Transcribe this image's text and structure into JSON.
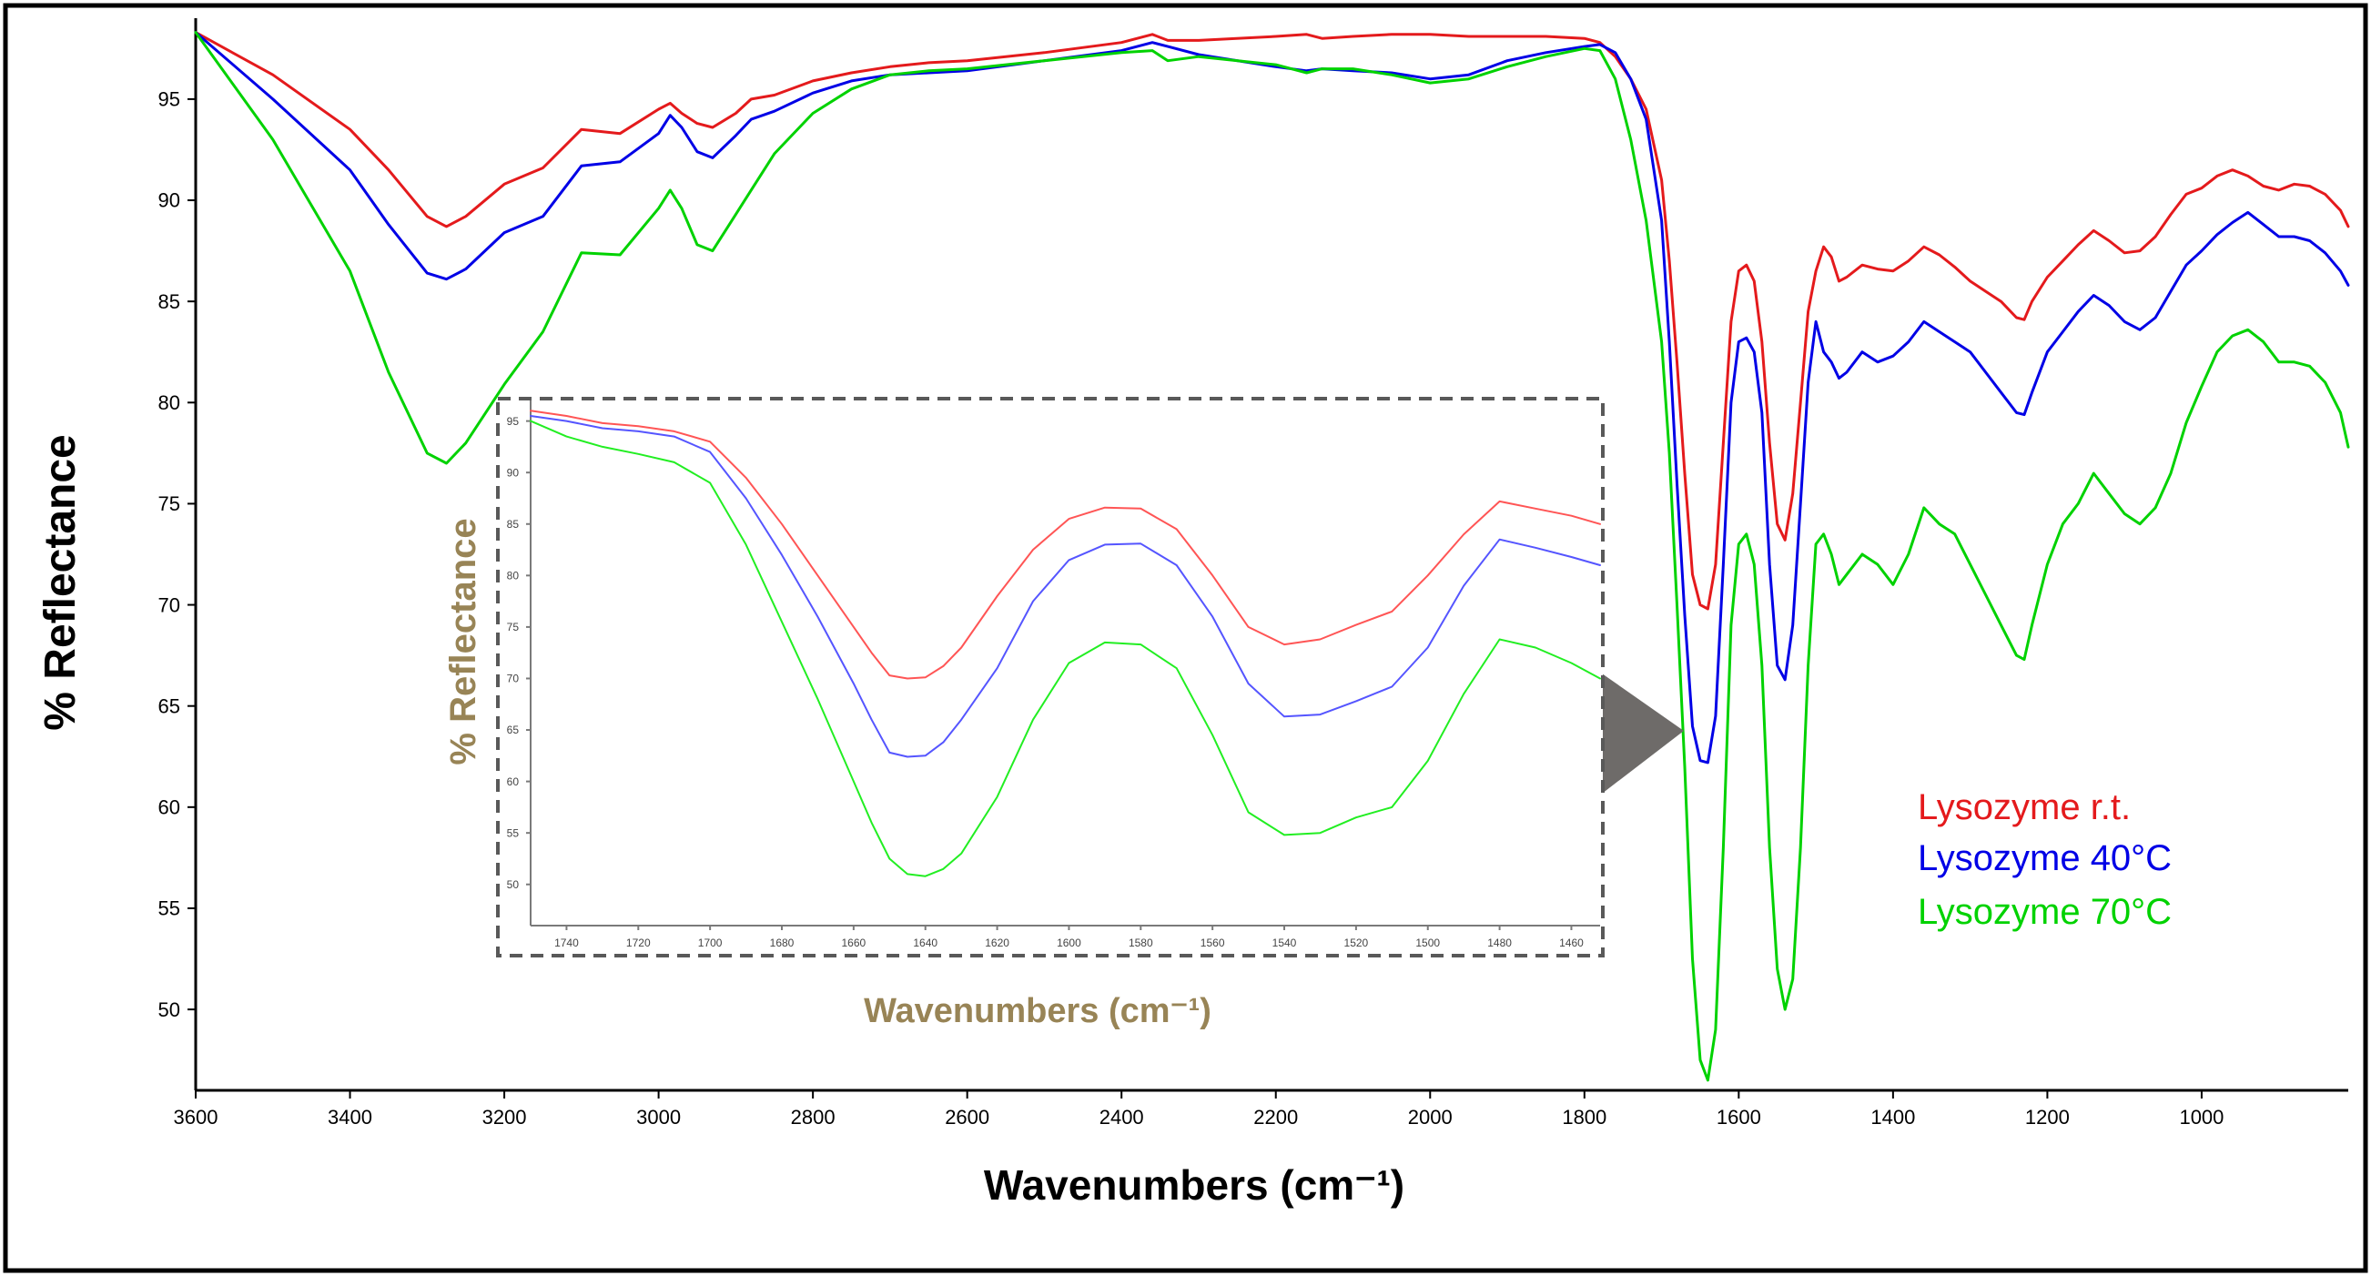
{
  "chart_data": [
    {
      "type": "line",
      "xlabel": "Wavenumbers (cm⁻¹)",
      "ylabel": "% Reflectance",
      "xlim": [
        3600,
        810
      ],
      "ylim": [
        46,
        99
      ],
      "xticks": [
        3600,
        3400,
        3200,
        3000,
        2800,
        2600,
        2400,
        2200,
        2000,
        1800,
        1600,
        1400,
        1200,
        1000
      ],
      "yticks": [
        50,
        55,
        60,
        65,
        70,
        75,
        80,
        85,
        90,
        95
      ],
      "legend_position": "lower-right",
      "series": [
        {
          "name": "Lysozyme r.t.",
          "color": "#e41a1c",
          "x": [
            3600,
            3500,
            3400,
            3350,
            3300,
            3275,
            3250,
            3200,
            3150,
            3100,
            3050,
            3000,
            2985,
            2970,
            2950,
            2930,
            2900,
            2880,
            2850,
            2800,
            2750,
            2700,
            2650,
            2600,
            2500,
            2400,
            2360,
            2340,
            2300,
            2200,
            2160,
            2140,
            2100,
            2050,
            2000,
            1950,
            1900,
            1850,
            1800,
            1780,
            1760,
            1740,
            1720,
            1700,
            1690,
            1680,
            1670,
            1660,
            1650,
            1640,
            1630,
            1620,
            1610,
            1600,
            1590,
            1580,
            1570,
            1560,
            1550,
            1540,
            1530,
            1520,
            1510,
            1500,
            1490,
            1480,
            1470,
            1460,
            1440,
            1420,
            1400,
            1380,
            1360,
            1340,
            1320,
            1300,
            1280,
            1260,
            1240,
            1230,
            1220,
            1200,
            1180,
            1160,
            1140,
            1120,
            1100,
            1080,
            1060,
            1040,
            1020,
            1000,
            980,
            960,
            940,
            920,
            900,
            880,
            860,
            840,
            820,
            810
          ],
          "values": [
            98.3,
            96.2,
            93.5,
            91.5,
            89.2,
            88.7,
            89.2,
            90.8,
            91.6,
            93.5,
            93.3,
            94.5,
            94.8,
            94.3,
            93.8,
            93.6,
            94.3,
            95.0,
            95.2,
            95.9,
            96.3,
            96.6,
            96.8,
            96.9,
            97.3,
            97.8,
            98.2,
            97.9,
            97.9,
            98.1,
            98.2,
            98.0,
            98.1,
            98.2,
            98.2,
            98.1,
            98.1,
            98.1,
            98.0,
            97.8,
            97.1,
            96.0,
            94.5,
            91.0,
            87.0,
            82.0,
            76.5,
            71.5,
            70.0,
            69.8,
            72.0,
            78.0,
            84.0,
            86.5,
            86.8,
            86.0,
            83.0,
            78.0,
            74.0,
            73.2,
            75.5,
            80.0,
            84.5,
            86.5,
            87.7,
            87.2,
            86.0,
            86.2,
            86.8,
            86.6,
            86.5,
            87.0,
            87.7,
            87.3,
            86.7,
            86.0,
            85.5,
            85.0,
            84.2,
            84.1,
            85.0,
            86.2,
            87.0,
            87.8,
            88.5,
            88.0,
            87.4,
            87.5,
            88.2,
            89.3,
            90.3,
            90.6,
            91.2,
            91.5,
            91.2,
            90.7,
            90.5,
            90.8,
            90.7,
            90.3,
            89.5,
            88.7
          ]
        },
        {
          "name": "Lysozyme 40°C",
          "color": "#0000e6",
          "x": [
            3600,
            3500,
            3400,
            3350,
            3300,
            3275,
            3250,
            3200,
            3150,
            3100,
            3050,
            3000,
            2985,
            2970,
            2950,
            2930,
            2900,
            2880,
            2850,
            2800,
            2750,
            2700,
            2650,
            2600,
            2500,
            2400,
            2360,
            2340,
            2300,
            2200,
            2160,
            2140,
            2100,
            2050,
            2000,
            1950,
            1900,
            1850,
            1800,
            1780,
            1760,
            1740,
            1720,
            1700,
            1690,
            1680,
            1670,
            1660,
            1650,
            1640,
            1630,
            1620,
            1610,
            1600,
            1590,
            1580,
            1570,
            1560,
            1550,
            1540,
            1530,
            1520,
            1510,
            1500,
            1490,
            1480,
            1470,
            1460,
            1440,
            1420,
            1400,
            1380,
            1360,
            1340,
            1320,
            1300,
            1280,
            1260,
            1240,
            1230,
            1220,
            1200,
            1180,
            1160,
            1140,
            1120,
            1100,
            1080,
            1060,
            1040,
            1020,
            1000,
            980,
            960,
            940,
            920,
            900,
            880,
            860,
            840,
            820,
            810
          ],
          "values": [
            98.3,
            95.0,
            91.5,
            88.8,
            86.4,
            86.1,
            86.6,
            88.4,
            89.2,
            91.7,
            91.9,
            93.3,
            94.2,
            93.6,
            92.4,
            92.1,
            93.2,
            94.0,
            94.4,
            95.3,
            95.9,
            96.2,
            96.3,
            96.4,
            96.9,
            97.4,
            97.8,
            97.6,
            97.2,
            96.6,
            96.4,
            96.5,
            96.4,
            96.3,
            96.0,
            96.2,
            96.9,
            97.3,
            97.6,
            97.7,
            97.3,
            96.0,
            94.0,
            89.0,
            83.0,
            76.0,
            69.5,
            64.0,
            62.3,
            62.2,
            64.5,
            72.0,
            80.0,
            83.0,
            83.2,
            82.5,
            79.5,
            72.0,
            67.0,
            66.3,
            69.0,
            75.0,
            81.0,
            84.0,
            82.5,
            82.0,
            81.2,
            81.5,
            82.5,
            82.0,
            82.3,
            83.0,
            84.0,
            83.5,
            83.0,
            82.5,
            81.5,
            80.5,
            79.5,
            79.4,
            80.5,
            82.5,
            83.5,
            84.5,
            85.3,
            84.8,
            84.0,
            83.6,
            84.2,
            85.5,
            86.8,
            87.5,
            88.3,
            88.9,
            89.4,
            88.8,
            88.2,
            88.2,
            88.0,
            87.4,
            86.5,
            85.8
          ]
        },
        {
          "name": "Lysozyme 70°C",
          "color": "#00d200",
          "x": [
            3600,
            3500,
            3400,
            3350,
            3300,
            3275,
            3250,
            3200,
            3150,
            3100,
            3050,
            3000,
            2985,
            2970,
            2950,
            2930,
            2900,
            2880,
            2850,
            2800,
            2750,
            2700,
            2650,
            2600,
            2500,
            2400,
            2360,
            2340,
            2300,
            2200,
            2160,
            2140,
            2100,
            2050,
            2000,
            1950,
            1900,
            1850,
            1800,
            1780,
            1760,
            1740,
            1720,
            1700,
            1690,
            1680,
            1670,
            1660,
            1650,
            1640,
            1630,
            1620,
            1610,
            1600,
            1590,
            1580,
            1570,
            1560,
            1550,
            1540,
            1530,
            1520,
            1510,
            1500,
            1490,
            1480,
            1470,
            1460,
            1440,
            1420,
            1400,
            1380,
            1360,
            1340,
            1320,
            1300,
            1280,
            1260,
            1240,
            1230,
            1220,
            1200,
            1180,
            1160,
            1140,
            1120,
            1100,
            1080,
            1060,
            1040,
            1020,
            1000,
            980,
            960,
            940,
            920,
            900,
            880,
            860,
            840,
            820,
            810
          ],
          "values": [
            98.3,
            93.0,
            86.5,
            81.5,
            77.5,
            77.0,
            78.0,
            80.9,
            83.5,
            87.4,
            87.3,
            89.6,
            90.5,
            89.6,
            87.8,
            87.5,
            89.3,
            90.5,
            92.3,
            94.3,
            95.5,
            96.2,
            96.4,
            96.5,
            96.9,
            97.3,
            97.4,
            96.9,
            97.1,
            96.7,
            96.3,
            96.5,
            96.5,
            96.2,
            95.8,
            96.0,
            96.6,
            97.1,
            97.5,
            97.4,
            96.0,
            93.0,
            89.0,
            83.0,
            77.5,
            70.0,
            62.0,
            52.5,
            47.5,
            46.5,
            49.0,
            58.0,
            69.0,
            73.0,
            73.5,
            72.0,
            67.0,
            58.0,
            52.0,
            50.0,
            51.5,
            58.0,
            67.0,
            73.0,
            73.5,
            72.5,
            71.0,
            71.5,
            72.5,
            72.0,
            71.0,
            72.5,
            74.8,
            74.0,
            73.5,
            72.0,
            70.5,
            69.0,
            67.5,
            67.3,
            69.0,
            72.0,
            74.0,
            75.0,
            76.5,
            75.5,
            74.5,
            74.0,
            74.8,
            76.5,
            79.0,
            80.8,
            82.5,
            83.3,
            83.6,
            83.0,
            82.0,
            82.0,
            81.8,
            81.0,
            79.5,
            77.8
          ]
        }
      ]
    },
    {
      "type": "line",
      "xlabel": "Wavenumbers (cm⁻¹)",
      "ylabel": "% Reflectance",
      "xlim": [
        1750,
        1452
      ],
      "ylim": [
        46,
        97
      ],
      "xticks": [
        1740,
        1720,
        1700,
        1680,
        1660,
        1640,
        1620,
        1600,
        1580,
        1560,
        1540,
        1520,
        1500,
        1480,
        1460
      ],
      "yticks": [
        50,
        55,
        60,
        65,
        70,
        75,
        80,
        85,
        90,
        95
      ],
      "series": [
        {
          "name": "Lysozyme r.t.",
          "color": "#ff5555",
          "x": [
            1750,
            1740,
            1730,
            1720,
            1710,
            1700,
            1690,
            1680,
            1670,
            1660,
            1655,
            1650,
            1645,
            1640,
            1635,
            1630,
            1620,
            1610,
            1600,
            1590,
            1580,
            1570,
            1560,
            1550,
            1540,
            1530,
            1520,
            1510,
            1500,
            1490,
            1480,
            1470,
            1460,
            1452
          ],
          "values": [
            96.0,
            95.5,
            94.8,
            94.5,
            94.0,
            93.0,
            89.5,
            85.0,
            80.0,
            75.0,
            72.5,
            70.3,
            70.0,
            70.1,
            71.2,
            73.0,
            78.0,
            82.5,
            85.5,
            86.6,
            86.5,
            84.5,
            80.0,
            75.0,
            73.3,
            73.8,
            75.2,
            76.5,
            80.0,
            84.0,
            87.2,
            86.5,
            85.8,
            85.0
          ]
        },
        {
          "name": "Lysozyme 40°C",
          "color": "#5555ff",
          "x": [
            1750,
            1740,
            1730,
            1720,
            1710,
            1700,
            1690,
            1680,
            1670,
            1660,
            1655,
            1650,
            1645,
            1640,
            1635,
            1630,
            1620,
            1610,
            1600,
            1590,
            1580,
            1570,
            1560,
            1550,
            1540,
            1530,
            1520,
            1510,
            1500,
            1490,
            1480,
            1470,
            1460,
            1452
          ],
          "values": [
            95.5,
            95.0,
            94.3,
            94.0,
            93.5,
            92.0,
            87.5,
            82.0,
            76.0,
            69.5,
            66.0,
            62.8,
            62.4,
            62.5,
            63.8,
            66.0,
            71.0,
            77.5,
            81.5,
            83.0,
            83.1,
            81.0,
            76.0,
            69.5,
            66.3,
            66.5,
            67.8,
            69.2,
            73.0,
            79.0,
            83.5,
            82.7,
            81.8,
            81.0
          ]
        },
        {
          "name": "Lysozyme 70°C",
          "color": "#22ee22",
          "x": [
            1750,
            1740,
            1730,
            1720,
            1710,
            1700,
            1690,
            1680,
            1670,
            1660,
            1655,
            1650,
            1645,
            1640,
            1635,
            1630,
            1620,
            1610,
            1600,
            1590,
            1580,
            1570,
            1560,
            1550,
            1540,
            1530,
            1520,
            1510,
            1500,
            1490,
            1480,
            1470,
            1460,
            1452
          ],
          "values": [
            95.0,
            93.5,
            92.5,
            91.8,
            91.0,
            89.0,
            83.0,
            75.5,
            68.0,
            60.0,
            56.0,
            52.5,
            51.0,
            50.8,
            51.5,
            53.0,
            58.5,
            66.0,
            71.5,
            73.5,
            73.3,
            71.0,
            64.5,
            57.0,
            54.8,
            55.0,
            56.5,
            57.5,
            62.0,
            68.5,
            73.8,
            73.0,
            71.5,
            70.0
          ]
        }
      ]
    }
  ]
}
